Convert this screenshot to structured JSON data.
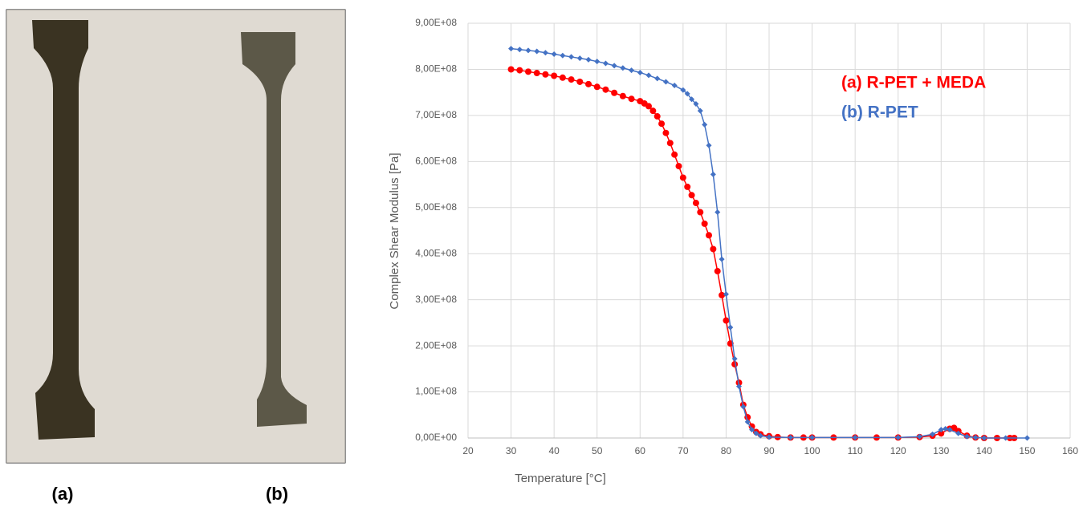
{
  "photo": {
    "labels": [
      "(a)",
      "(b)"
    ]
  },
  "chart_data": {
    "type": "line",
    "xlabel": "Temperature [°C]",
    "ylabel": "Complex Shear Modulus  [Pa]",
    "xlim": [
      20,
      160
    ],
    "xticks": [
      20,
      30,
      40,
      50,
      60,
      70,
      80,
      90,
      100,
      110,
      120,
      130,
      140,
      150,
      160
    ],
    "ylim": [
      0,
      900000000.0
    ],
    "yticks": [
      {
        "value": 0,
        "label": "0,00E+00"
      },
      {
        "value": 100000000.0,
        "label": "1,00E+08"
      },
      {
        "value": 200000000.0,
        "label": "2,00E+08"
      },
      {
        "value": 300000000.0,
        "label": "3,00E+08"
      },
      {
        "value": 400000000.0,
        "label": "4,00E+08"
      },
      {
        "value": 500000000.0,
        "label": "5,00E+08"
      },
      {
        "value": 600000000.0,
        "label": "6,00E+08"
      },
      {
        "value": 700000000.0,
        "label": "7,00E+08"
      },
      {
        "value": 800000000.0,
        "label": "8,00E+08"
      },
      {
        "value": 900000000.0,
        "label": "9,00E+08"
      }
    ],
    "grid": true,
    "legend": "upper right",
    "series": [
      {
        "name": "(a) R-PET + MEDA",
        "color": "#ff0000",
        "marker": "circle",
        "x": [
          30,
          32,
          34,
          36,
          38,
          40,
          42,
          44,
          46,
          48,
          50,
          52,
          54,
          56,
          58,
          60,
          61,
          62,
          63,
          64,
          65,
          66,
          67,
          68,
          69,
          70,
          71,
          72,
          73,
          74,
          75,
          76,
          77,
          78,
          79,
          80,
          81,
          82,
          83,
          84,
          85,
          86,
          87,
          88,
          90,
          92,
          95,
          98,
          100,
          105,
          110,
          115,
          120,
          125,
          128,
          130,
          132,
          133,
          134,
          136,
          138,
          140,
          143,
          146,
          147
        ],
        "values": [
          800000000.0,
          798000000.0,
          795000000.0,
          792000000.0,
          789000000.0,
          786000000.0,
          782000000.0,
          778000000.0,
          773000000.0,
          768000000.0,
          762000000.0,
          756000000.0,
          749000000.0,
          742000000.0,
          736000000.0,
          731000000.0,
          726000000.0,
          720000000.0,
          710000000.0,
          698000000.0,
          682000000.0,
          662000000.0,
          640000000.0,
          615000000.0,
          590000000.0,
          565000000.0,
          545000000.0,
          527000000.0,
          510000000.0,
          490000000.0,
          465000000.0,
          440000000.0,
          410000000.0,
          362000000.0,
          310000000.0,
          255000000.0,
          205000000.0,
          160000000.0,
          120000000.0,
          72000000.0,
          45000000.0,
          25000000.0,
          13000000.0,
          8000000.0,
          4000000.0,
          2000000.0,
          1000000.0,
          1000000.0,
          1000000.0,
          1000000.0,
          1000000.0,
          1000000.0,
          1000000.0,
          2000000.0,
          5000000.0,
          10000000.0,
          20000000.0,
          22000000.0,
          15000000.0,
          5000000.0,
          1000000.0,
          0,
          0,
          0,
          0
        ]
      },
      {
        "name": "(b) R-PET",
        "color": "#4472c4",
        "marker": "diamond",
        "x": [
          30,
          32,
          34,
          36,
          38,
          40,
          42,
          44,
          46,
          48,
          50,
          52,
          54,
          56,
          58,
          60,
          62,
          64,
          66,
          68,
          70,
          71,
          72,
          73,
          74,
          75,
          76,
          77,
          78,
          79,
          80,
          81,
          82,
          83,
          84,
          85,
          86,
          87,
          88,
          90,
          95,
          100,
          110,
          120,
          125,
          128,
          130,
          131,
          132,
          134,
          136,
          138,
          140,
          145,
          150
        ],
        "values": [
          845000000.0,
          843000000.0,
          841000000.0,
          839000000.0,
          836000000.0,
          833000000.0,
          830000000.0,
          827000000.0,
          824000000.0,
          821000000.0,
          817000000.0,
          813000000.0,
          808000000.0,
          803000000.0,
          798000000.0,
          793000000.0,
          787000000.0,
          780000000.0,
          773000000.0,
          765000000.0,
          755000000.0,
          747000000.0,
          735000000.0,
          725000000.0,
          710000000.0,
          680000000.0,
          635000000.0,
          572000000.0,
          490000000.0,
          388000000.0,
          312000000.0,
          240000000.0,
          172000000.0,
          112000000.0,
          68000000.0,
          35000000.0,
          18000000.0,
          10000000.0,
          5000000.0,
          2000000.0,
          1000000.0,
          1000000.0,
          1000000.0,
          1000000.0,
          3000000.0,
          8000000.0,
          18000000.0,
          20000000.0,
          18000000.0,
          10000000.0,
          3000000.0,
          1000000.0,
          0,
          0,
          0
        ]
      }
    ]
  }
}
